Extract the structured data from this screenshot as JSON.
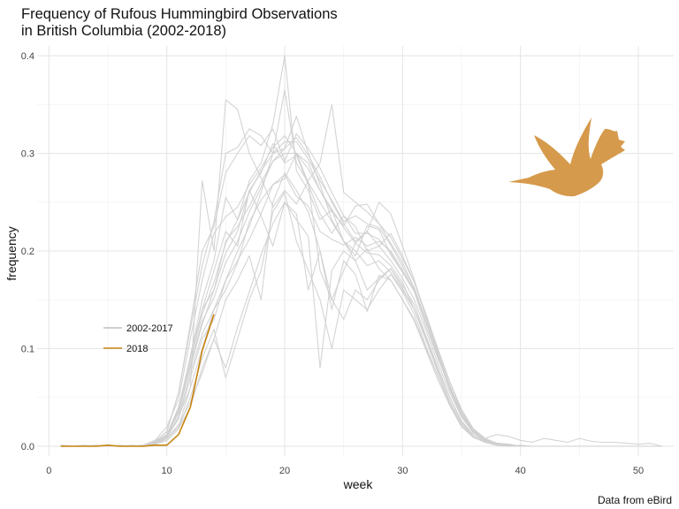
{
  "chart_data": {
    "type": "line",
    "title": [
      "Frequency of Rufous Hummingbird Observations",
      "in British Columbia (2002-2018)"
    ],
    "xlabel": "week",
    "ylabel": "frequency",
    "caption": "Data from eBird",
    "xlim": [
      -1,
      53
    ],
    "ylim": [
      -0.01,
      0.41
    ],
    "x_ticks": [
      0,
      10,
      20,
      30,
      40,
      50
    ],
    "y_ticks": [
      0.0,
      0.1,
      0.2,
      0.3,
      0.4
    ],
    "y_tick_labels": [
      "0.0",
      "0.1",
      "0.2",
      "0.3",
      "0.4"
    ],
    "grid": true,
    "legend": {
      "position": "left",
      "entries": [
        {
          "label": "2002-2017",
          "color": "#bdbdbd"
        },
        {
          "label": "2018",
          "color": "#c8840f"
        }
      ]
    },
    "colors": {
      "historical": "#cfcfcf",
      "current": "#c8840f",
      "bird": "#d69a4c"
    },
    "icon": "hummingbird-silhouette",
    "weeks": [
      1,
      2,
      3,
      4,
      5,
      6,
      7,
      8,
      9,
      10,
      11,
      12,
      13,
      14,
      15,
      16,
      17,
      18,
      19,
      20,
      21,
      22,
      23,
      24,
      25,
      26,
      27,
      28,
      29,
      30,
      31,
      32,
      33,
      34,
      35,
      36,
      37,
      38,
      39,
      40,
      41,
      42,
      43,
      44,
      45,
      46,
      47,
      48,
      49,
      50,
      51,
      52
    ],
    "series": [
      {
        "values": [
          0.0,
          0.0,
          0.0,
          0.0,
          0.001,
          0.0,
          0.0,
          0.001,
          0.006,
          0.02,
          0.048,
          0.11,
          0.17,
          0.218,
          0.235,
          0.245,
          0.268,
          0.285,
          0.306,
          0.318,
          0.3,
          0.284,
          0.262,
          0.243,
          0.224,
          0.208,
          0.198,
          0.196,
          0.185,
          0.168,
          0.14,
          0.112,
          0.08,
          0.05,
          0.025,
          0.012,
          0.005,
          0.002,
          0.001,
          0.0,
          0.0,
          0.0,
          0.0,
          0.0,
          0.0,
          0.0,
          0.0,
          0.0,
          0.0,
          0.0,
          0.0,
          0.0
        ]
      },
      {
        "values": [
          0.0,
          0.0,
          0.0,
          0.001,
          0.0,
          0.0,
          0.0,
          0.0,
          0.004,
          0.012,
          0.035,
          0.092,
          0.15,
          0.19,
          0.255,
          0.232,
          0.272,
          0.29,
          0.33,
          0.4,
          0.282,
          0.262,
          0.232,
          0.242,
          0.21,
          0.19,
          0.202,
          0.182,
          0.17,
          0.15,
          0.13,
          0.1,
          0.072,
          0.042,
          0.02,
          0.01,
          0.004,
          0.002,
          0.0,
          0.001,
          0.0,
          0.0,
          0.0,
          0.0,
          0.0,
          0.0,
          0.0,
          0.0,
          0.0,
          0.0,
          0.0,
          0.0
        ]
      },
      {
        "values": [
          0.0,
          0.0,
          0.0,
          0.0,
          0.0,
          0.0,
          0.0,
          0.0,
          0.002,
          0.008,
          0.02,
          0.06,
          0.1,
          0.14,
          0.17,
          0.2,
          0.225,
          0.26,
          0.3,
          0.365,
          0.29,
          0.27,
          0.25,
          0.23,
          0.21,
          0.2,
          0.185,
          0.19,
          0.178,
          0.16,
          0.14,
          0.11,
          0.078,
          0.05,
          0.024,
          0.01,
          0.004,
          0.001,
          0.0,
          0.0,
          0.0,
          0.0,
          0.0,
          0.0,
          0.0,
          0.0,
          0.0,
          0.0,
          0.0,
          0.0,
          0.0,
          0.0
        ]
      },
      {
        "values": [
          0.0,
          0.0,
          0.0,
          0.0,
          0.0,
          0.0,
          0.001,
          0.0,
          0.005,
          0.015,
          0.055,
          0.12,
          0.185,
          0.23,
          0.3,
          0.306,
          0.325,
          0.318,
          0.3,
          0.305,
          0.316,
          0.298,
          0.276,
          0.25,
          0.228,
          0.21,
          0.22,
          0.205,
          0.19,
          0.172,
          0.15,
          0.118,
          0.085,
          0.055,
          0.03,
          0.014,
          0.006,
          0.003,
          0.002,
          0.0,
          0.0,
          0.0,
          0.0,
          0.0,
          0.0,
          0.0,
          0.0,
          0.0,
          0.0,
          0.0,
          0.0,
          0.0
        ]
      },
      {
        "values": [
          0.001,
          0.0,
          0.0,
          0.0,
          0.0,
          0.001,
          0.0,
          0.0,
          0.003,
          0.01,
          0.04,
          0.08,
          0.125,
          0.16,
          0.21,
          0.225,
          0.246,
          0.27,
          0.292,
          0.305,
          0.338,
          0.3,
          0.268,
          0.232,
          0.21,
          0.195,
          0.226,
          0.222,
          0.196,
          0.178,
          0.158,
          0.122,
          0.09,
          0.06,
          0.034,
          0.016,
          0.007,
          0.003,
          0.001,
          0.0,
          0.0,
          0.0,
          0.0,
          0.0,
          0.0,
          0.0,
          0.0,
          0.0,
          0.0,
          0.0,
          0.0,
          0.0
        ]
      },
      {
        "values": [
          0.0,
          0.0,
          0.0,
          0.0,
          0.0,
          0.0,
          0.0,
          0.0,
          0.003,
          0.01,
          0.03,
          0.06,
          0.272,
          0.2,
          0.355,
          0.345,
          0.3,
          0.275,
          0.245,
          0.262,
          0.248,
          0.272,
          0.29,
          0.35,
          0.26,
          0.25,
          0.24,
          0.228,
          0.208,
          0.188,
          0.162,
          0.128,
          0.092,
          0.06,
          0.032,
          0.015,
          0.006,
          0.002,
          0.001,
          0.0,
          0.0,
          0.0,
          0.0,
          0.0,
          0.0,
          0.0,
          0.0,
          0.0,
          0.0,
          0.0,
          0.0,
          0.0
        ]
      },
      {
        "values": [
          0.0,
          0.0,
          0.001,
          0.0,
          0.0,
          0.0,
          0.0,
          0.0,
          0.002,
          0.006,
          0.018,
          0.04,
          0.08,
          0.11,
          0.15,
          0.17,
          0.195,
          0.15,
          0.25,
          0.28,
          0.262,
          0.24,
          0.2,
          0.15,
          0.18,
          0.208,
          0.22,
          0.25,
          0.238,
          0.205,
          0.17,
          0.132,
          0.098,
          0.066,
          0.038,
          0.018,
          0.008,
          0.003,
          0.001,
          0.0,
          0.0,
          0.0,
          0.0,
          0.0,
          0.0,
          0.0,
          0.0,
          0.0,
          0.0,
          0.0,
          0.0,
          0.0
        ]
      },
      {
        "values": [
          0.0,
          0.0,
          0.0,
          0.0,
          0.0,
          0.0,
          0.0,
          0.0,
          0.004,
          0.012,
          0.038,
          0.092,
          0.14,
          0.18,
          0.22,
          0.205,
          0.262,
          0.236,
          0.205,
          0.25,
          0.232,
          0.215,
          0.08,
          0.18,
          0.2,
          0.19,
          0.16,
          0.172,
          0.182,
          0.165,
          0.145,
          0.112,
          0.08,
          0.05,
          0.026,
          0.012,
          0.005,
          0.002,
          0.001,
          0.0,
          0.0,
          0.0,
          0.0,
          0.0,
          0.0,
          0.0,
          0.0,
          0.0,
          0.0,
          0.0,
          0.0,
          0.0
        ]
      },
      {
        "values": [
          0.0,
          0.0,
          0.0,
          0.0,
          0.0,
          0.0,
          0.0,
          0.0,
          0.003,
          0.008,
          0.022,
          0.045,
          0.075,
          0.11,
          0.08,
          0.122,
          0.158,
          0.196,
          0.228,
          0.25,
          0.238,
          0.16,
          0.2,
          0.14,
          0.19,
          0.176,
          0.138,
          0.175,
          0.17,
          0.15,
          0.128,
          0.098,
          0.068,
          0.042,
          0.02,
          0.009,
          0.004,
          0.001,
          0.0,
          0.0,
          0.0,
          0.0,
          0.0,
          0.0,
          0.0,
          0.0,
          0.0,
          0.0,
          0.0,
          0.0,
          0.0,
          0.0
        ]
      },
      {
        "values": [
          0.0,
          0.0,
          0.0,
          0.0,
          0.0,
          0.0,
          0.0,
          0.0,
          0.002,
          0.006,
          0.018,
          0.05,
          0.09,
          0.12,
          0.07,
          0.11,
          0.15,
          0.18,
          0.24,
          0.26,
          0.21,
          0.18,
          0.15,
          0.1,
          0.16,
          0.15,
          0.14,
          0.16,
          0.176,
          0.158,
          0.135,
          0.102,
          0.072,
          0.044,
          0.022,
          0.01,
          0.004,
          0.002,
          0.0,
          0.0,
          0.0,
          0.0,
          0.0,
          0.0,
          0.0,
          0.0,
          0.0,
          0.0,
          0.0,
          0.0,
          0.0,
          0.0
        ]
      },
      {
        "values": [
          0.0,
          0.0,
          0.0,
          0.0,
          0.0,
          0.0,
          0.0,
          0.0,
          0.005,
          0.015,
          0.055,
          0.125,
          0.2,
          0.225,
          0.28,
          0.3,
          0.318,
          0.308,
          0.325,
          0.292,
          0.32,
          0.305,
          0.285,
          0.26,
          0.236,
          0.218,
          0.218,
          0.212,
          0.198,
          0.18,
          0.16,
          0.126,
          0.092,
          0.058,
          0.03,
          0.014,
          0.006,
          0.002,
          0.001,
          0.0,
          0.0,
          0.0,
          0.0,
          0.0,
          0.0,
          0.0,
          0.0,
          0.0,
          0.0,
          0.0,
          0.0,
          0.0
        ]
      },
      {
        "values": [
          0.0,
          0.0,
          0.0,
          0.0,
          0.0,
          0.0,
          0.0,
          0.0,
          0.004,
          0.012,
          0.04,
          0.09,
          0.14,
          0.16,
          0.198,
          0.22,
          0.262,
          0.28,
          0.31,
          0.29,
          0.298,
          0.268,
          0.238,
          0.218,
          0.236,
          0.225,
          0.2,
          0.205,
          0.218,
          0.195,
          0.168,
          0.132,
          0.096,
          0.062,
          0.034,
          0.016,
          0.007,
          0.003,
          0.001,
          0.0,
          0.0,
          0.0,
          0.0,
          0.0,
          0.0,
          0.0,
          0.0,
          0.0,
          0.0,
          0.0,
          0.0,
          0.0
        ]
      },
      {
        "values": [
          0.0,
          0.0,
          0.0,
          0.0,
          0.0,
          0.0,
          0.0,
          0.0,
          0.003,
          0.009,
          0.028,
          0.07,
          0.11,
          0.13,
          0.17,
          0.19,
          0.212,
          0.238,
          0.268,
          0.278,
          0.256,
          0.246,
          0.22,
          0.212,
          0.206,
          0.214,
          0.205,
          0.21,
          0.2,
          0.18,
          0.16,
          0.128,
          0.094,
          0.062,
          0.034,
          0.016,
          0.007,
          0.003,
          0.002,
          0.0,
          0.0,
          0.0,
          0.0,
          0.0,
          0.0,
          0.0,
          0.0,
          0.0,
          0.0,
          0.0,
          0.0,
          0.0
        ]
      },
      {
        "values": [
          0.0,
          0.0,
          0.0,
          0.0,
          0.0,
          0.0,
          0.0,
          0.0,
          0.003,
          0.01,
          0.03,
          0.075,
          0.115,
          0.14,
          0.16,
          0.188,
          0.23,
          0.252,
          0.268,
          0.274,
          0.3,
          0.27,
          0.18,
          0.15,
          0.13,
          0.16,
          0.15,
          0.17,
          0.182,
          0.162,
          0.14,
          0.108,
          0.076,
          0.046,
          0.022,
          0.01,
          0.004,
          0.001,
          0.0,
          0.0,
          0.0,
          0.0,
          0.0,
          0.0,
          0.0,
          0.0,
          0.0,
          0.0,
          0.0,
          0.0,
          0.0,
          0.0
        ]
      },
      {
        "values": [
          0.0,
          0.0,
          0.0,
          0.0,
          0.0,
          0.0,
          0.0,
          0.0,
          0.004,
          0.011,
          0.034,
          0.082,
          0.128,
          0.152,
          0.188,
          0.21,
          0.24,
          0.265,
          0.292,
          0.3,
          0.3,
          0.29,
          0.262,
          0.24,
          0.226,
          0.246,
          0.248,
          0.228,
          0.214,
          0.192,
          0.168,
          0.135,
          0.1,
          0.066,
          0.036,
          0.017,
          0.007,
          0.003,
          0.001,
          0.0,
          0.0,
          0.0,
          0.0,
          0.0,
          0.0,
          0.0,
          0.0,
          0.0,
          0.0,
          0.0,
          0.0,
          0.0
        ]
      },
      {
        "values": [
          0.001,
          0.0,
          0.0,
          0.0,
          0.0,
          0.0,
          0.0,
          0.001,
          0.004,
          0.012,
          0.036,
          0.085,
          0.135,
          0.168,
          0.208,
          0.232,
          0.26,
          0.282,
          0.3,
          0.312,
          0.312,
          0.294,
          0.272,
          0.252,
          0.23,
          0.236,
          0.228,
          0.224,
          0.206,
          0.184,
          0.162,
          0.128,
          0.094,
          0.06,
          0.032,
          0.015,
          0.008,
          0.012,
          0.01,
          0.006,
          0.004,
          0.008,
          0.006,
          0.004,
          0.008,
          0.005,
          0.004,
          0.004,
          0.003,
          0.002,
          0.003,
          0.0
        ]
      },
      {
        "name": "2018",
        "values": [
          0.0,
          0.0,
          0.0,
          0.0,
          0.001,
          0.0,
          0.0,
          0.0,
          0.001,
          0.001,
          0.012,
          0.04,
          0.098,
          0.135
        ]
      }
    ]
  }
}
